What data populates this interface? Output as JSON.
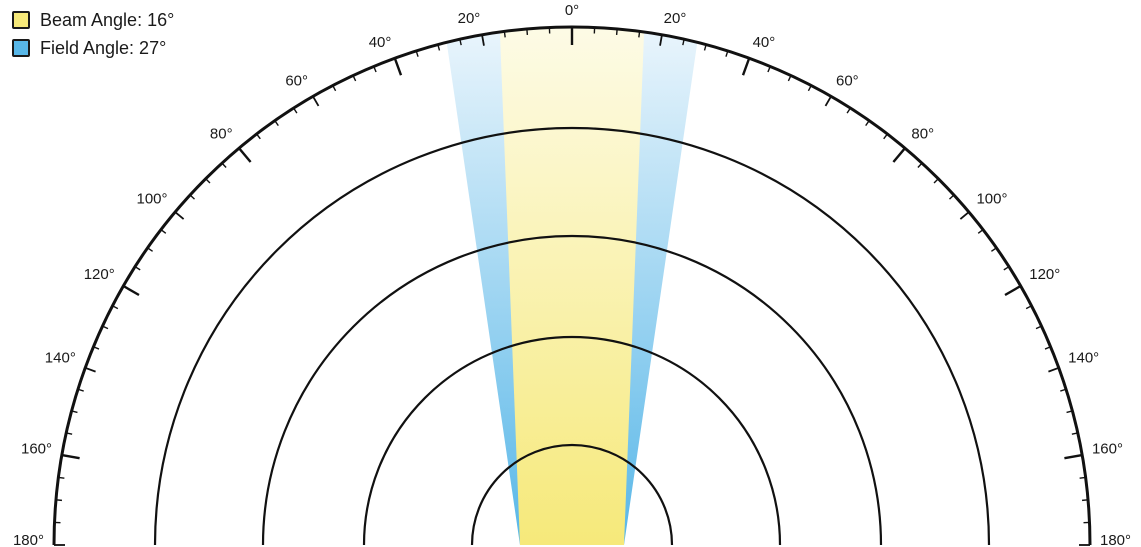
{
  "legend": {
    "beam": {
      "label": "Beam Angle: 16°",
      "color": "#f6e97a"
    },
    "field": {
      "label": "Field Angle: 27°",
      "color": "#58b7e8"
    }
  },
  "beam_angle_deg": 16,
  "field_angle_deg": 27,
  "angle_labels_left": [
    "0°",
    "20°",
    "40°",
    "60°",
    "80°",
    "100°",
    "120°",
    "140°",
    "160°",
    "180°"
  ],
  "angle_labels_right": [
    "20°",
    "40°",
    "60°",
    "80°",
    "100°",
    "120°",
    "140°",
    "160°",
    "180°"
  ],
  "concentric_rings": 4,
  "colors": {
    "line": "#111111",
    "beam_light": "#fdfbe6",
    "field_light": "#eaf5fc"
  }
}
